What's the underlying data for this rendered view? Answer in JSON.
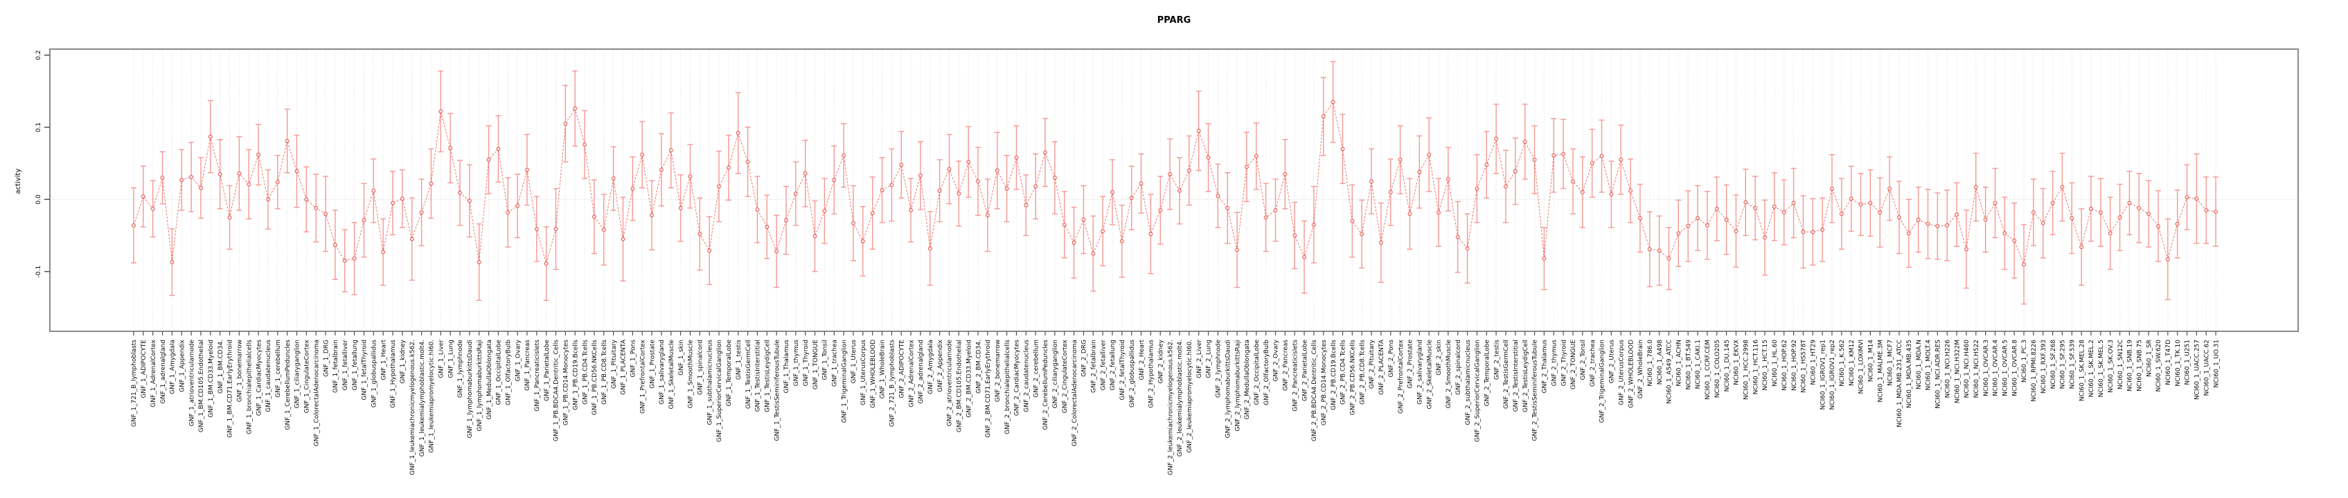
{
  "title": "PPARG",
  "chart_data": {
    "type": "line",
    "title": "PPARG",
    "ylabel": "activity",
    "xlabel": "",
    "ylim": [
      -0.185,
      0.21
    ],
    "yticks": [
      -0.1,
      0.0,
      0.1,
      0.2
    ],
    "ytick_labels": [
      "-0.1",
      "0.0",
      "0.1",
      "0.2"
    ],
    "grid": "vertical dotted gridline per category; dotted horizontal line at 0",
    "legend_position": "none",
    "point_color": "#e4564e",
    "line_color": "#e4564e",
    "errorbar_color": "#f59791",
    "box_color": "#8a8a8a",
    "gridline_color": "#dcdcdc",
    "categories": [
      "GNF_1_721_B_lymphoblasts",
      "GNF_1_ADIPOCYTE",
      "GNF_1_AdrenalCortex",
      "GNF_1_adrenalgland",
      "GNF_1_Amygdala",
      "GNF_1_Appendix",
      "GNF_1_atrioventricularnode",
      "GNF_1_BM.CD105.Endothelial",
      "GNF_1_BM.CD33.Myeloid",
      "GNF_1_BM.CD34.",
      "GNF_1_BM.CD71.EarlyErythroid",
      "GNF_1_bonemarrow",
      "GNF_1_bronchialepithelialcells",
      "GNF_1_CardiacMyocytes",
      "GNF_1_caudatenucleus",
      "GNF_1_cerebellum",
      "GNF_1_CerebellumPeduncles",
      "GNF_1_ciliaryganglion",
      "GNF_1_CingulateCortex",
      "GNF_1_ColorectalAdenocarcinoma",
      "GNF_1_DRG",
      "GNF_1_fetalbrain",
      "GNF_1_fetalliver",
      "GNF_1_fetallung",
      "GNF_1_fetalThyroid",
      "GNF_1_globuspallidus",
      "GNF_1_Heart",
      "GNF_1_Hypothalamus",
      "GNF_1_kidney",
      "GNF_1_leukemiachronicmyelogenous.k562.",
      "GNF_1_leukemialymphoblastic.molt4.",
      "GNF_1_leukemiapromyelocytic.hl60.",
      "GNF_1_Liver",
      "GNF_1_Lung",
      "GNF_1_lymphnode",
      "GNF_1_lymphomaburkittsDaudi",
      "GNF_1_lymphomaburkittsRaji",
      "GNF_1_MedullaOblongata",
      "GNF_1_OccipitalLobe",
      "GNF_1_OlfactoryBulb",
      "GNF_1_Ovary",
      "GNF_1_Pancreas",
      "GNF_1_Pancreaticislets",
      "GNF_1_ParietalLobe",
      "GNF_1_PB.BDCA4.Dentritic_Cells",
      "GNF_1_PB.CD14.Monocytes",
      "GNF_1_PB.CD19.Bcells",
      "GNF_1_PB.CD4.Tcells",
      "GNF_1_PB.CD56.NKCells",
      "GNF_1_PB.CD8.Tcells",
      "GNF_1_Pituitary",
      "GNF_1_PLACENTA",
      "GNF_1_Pons",
      "GNF_1_PrefrontalCortex",
      "GNF_1_Prostate",
      "GNF_1_salivarygland",
      "GNF_1_SkeletalMuscle",
      "GNF_1_skin",
      "GNF_1_SmoothMuscle",
      "GNF_1_spinalcord",
      "GNF_1_subthalamicnucleus",
      "GNF_1_SuperiorCervicalGanglion",
      "GNF_1_TemporalLobe",
      "GNF_1_testis",
      "GNF_1_TestisGermCell",
      "GNF_1_TestisInterstitial",
      "GNF_1_TestisLeydigCell",
      "GNF_1_TestisSeminiferousTubule",
      "GNF_1_Thalamus",
      "GNF_1_thymus",
      "GNF_1_Thyroid",
      "GNF_1_TONGUE",
      "GNF_1_Tonsil",
      "GNF_1_trachea",
      "GNF_1_TrigeminalGanglion",
      "GNF_1_Uterus",
      "GNF_1_UterusCorpus",
      "GNF_1_WHOLEBLOOD",
      "GNF_1_WholeBrain",
      "GNF_2_721_B_lymphoblasts",
      "GNF_2_ADIPOCYTE",
      "GNF_2_AdrenalCortex",
      "GNF_2_adrenalgland",
      "GNF_2_Amygdala",
      "GNF_2_Appendix",
      "GNF_2_atrioventricularnode",
      "GNF_2_BM.CD105.Endothelial",
      "GNF_2_BM.CD33.Myeloid",
      "GNF_2_BM.CD34.",
      "GNF_2_BM.CD71.EarlyErythroid",
      "GNF_2_bonemarrow",
      "GNF_2_bronchialepithelialcells",
      "GNF_2_CardiacMyocytes",
      "GNF_2_caudatenucleus",
      "GNF_2_cerebellum",
      "GNF_2_CerebellumPeduncles",
      "GNF_2_ciliaryganglion",
      "GNF_2_CingulateCortex",
      "GNF_2_ColorectalAdenocarcinoma",
      "GNF_2_DRG",
      "GNF_2_fetalbrain",
      "GNF_2_fetalliver",
      "GNF_2_fetallung",
      "GNF_2_fetalThyroid",
      "GNF_2_globuspallidus",
      "GNF_2_Heart",
      "GNF_2_Hypothalamus",
      "GNF_2_kidney",
      "GNF_2_leukemiachronicmyelogenous.k562.",
      "GNF_2_leukemialymphoblastic.molt4.",
      "GNF_2_leukemiapromyelocytic.hl60.",
      "GNF_2_Liver",
      "GNF_2_Lung",
      "GNF_2_lymphnode",
      "GNF_2_lymphomaburkittsDaudi",
      "GNF_2_lymphomaburkittsRaji",
      "GNF_2_MedullaOblongata",
      "GNF_2_OccipitalLobe",
      "GNF_2_OlfactoryBulb",
      "GNF_2_Ovary",
      "GNF_2_Pancreas",
      "GNF_2_Pancreaticislets",
      "GNF_2_ParietalLobe",
      "GNF_2_PB.BDCA4.Dentritic_Cells",
      "GNF_2_PB.CD14.Monocytes",
      "GNF_2_PB.CD19.Bcells",
      "GNF_2_PB.CD4.Tcells",
      "GNF_2_PB.CD56.NKCells",
      "GNF_2_PB.CD8.Tcells",
      "GNF_2_Pituitary",
      "GNF_2_PLACENTA",
      "GNF_2_Pons",
      "GNF_2_PrefrontalCortex",
      "GNF_2_Prostate",
      "GNF_2_salivarygland",
      "GNF_2_SkeletalMuscle",
      "GNF_2_skin",
      "GNF_2_SmoothMuscle",
      "GNF_2_spinalcord",
      "GNF_2_subthalamicnucleus",
      "GNF_2_SuperiorCervicalGanglion",
      "GNF_2_TemporalLobe",
      "GNF_2_testis",
      "GNF_2_TestisGermCell",
      "GNF_2_TestisInterstitial",
      "GNF_2_TestisLeydigCell",
      "GNF_2_TestisSeminiferousTubule",
      "GNF_2_Thalamus",
      "GNF_2_thymus",
      "GNF_2_Thyroid",
      "GNF_2_TONGUE",
      "GNF_2_Tonsil",
      "GNF_2_trachea",
      "GNF_2_TrigeminalGanglion",
      "GNF_2_Uterus",
      "GNF_2_UterusCorpus",
      "GNF_2_WHOLEBLOOD",
      "GNF_2_WholeBrain",
      "NCI60_1_786.0",
      "NCI60_1_A498",
      "NCI60_1_A549_ATCC",
      "NCI60_1_ACHN",
      "NCI60_1_BT.549",
      "NCI60_1_CAKI.1",
      "NCI60_1_CCRF.CEM",
      "NCI60_1_COLO205",
      "NCI60_1_DU.145",
      "NCI60_1_EKVX",
      "NCI60_1_HCC.2998",
      "NCI60_1_HCT.116",
      "NCI60_1_HCT.15",
      "NCI60_1_HL.60",
      "NCI60_1_HOP.62",
      "NCI60_1_HOP.92",
      "NCI60_1_HS578T",
      "NCI60_1_HT29",
      "NCI60_1_IGROV1_rep1",
      "NCI60_1_IGROV1_rep2",
      "NCI60_1_K.562",
      "NCI60_1_KM12",
      "NCI60_1_LOXIMVI",
      "NCI60_1_M14",
      "NCI60_1_MALME.3M",
      "NCI60_1_MCF7",
      "NCI60_1_MDA.MB.231_ATCC",
      "NCI60_1_MDA.MB.435",
      "NCI60_1_MDA.N",
      "NCI60_1_MOLT.4",
      "NCI60_1_NCI.ADR.RES",
      "NCI60_1_NCI.H226",
      "NCI60_1_NCI.H322M",
      "NCI60_1_NCI.H460",
      "NCI60_1_NCI.H522",
      "NCI60_1_OVCAR.3",
      "NCI60_1_OVCAR.4",
      "NCI60_1_OVCAR.5",
      "NCI60_1_OVCAR.8",
      "NCI60_1_PC.3",
      "NCI60_1_RPMI.8226",
      "NCI60_1_RXF.393",
      "NCI60_1_SF.268",
      "NCI60_1_SF.295",
      "NCI60_1_SF.539",
      "NCI60_1_SK.MEL.28",
      "NCI60_1_SK.MEL.2",
      "NCI60_1_SK.MEL.5",
      "NCI60_1_SK.OV.3",
      "NCI60_1_SN12C",
      "NCI60_1_SNB.19",
      "NCI60_1_SNB.75",
      "NCI60_1_SR",
      "NCI60_1_SW.620",
      "NCI60_1_T47D",
      "NCI60_1_TK.10",
      "NCI60_1_U251",
      "NCI60_1_UACC.257",
      "NCI60_1_UACC.62",
      "NCI60_1_UO.31"
    ],
    "series": [
      {
        "name": "activity",
        "values": [
          -0.036,
          0.004,
          -0.013,
          0.03,
          -0.087,
          0.027,
          0.031,
          0.016,
          0.087,
          0.035,
          -0.025,
          0.036,
          0.021,
          0.062,
          0.0,
          0.024,
          0.081,
          0.039,
          0.0,
          -0.012,
          -0.02,
          -0.063,
          -0.085,
          -0.082,
          -0.029,
          0.012,
          -0.073,
          -0.005,
          0.001,
          -0.055,
          -0.018,
          0.022,
          0.122,
          0.071,
          0.009,
          -0.002,
          -0.087,
          0.055,
          0.07,
          -0.018,
          -0.009,
          0.041,
          -0.041,
          -0.089,
          -0.041,
          0.105,
          0.126,
          0.076,
          -0.024,
          -0.042,
          0.029,
          -0.055,
          0.015,
          0.062,
          -0.022,
          0.041,
          0.068,
          -0.012,
          0.032,
          -0.048,
          -0.071,
          0.018,
          0.044,
          0.092,
          0.052,
          -0.014,
          -0.038,
          -0.072,
          -0.029,
          0.008,
          0.036,
          -0.051,
          -0.016,
          0.027,
          0.061,
          -0.033,
          -0.058,
          -0.019,
          0.013,
          0.02,
          0.048,
          -0.015,
          0.033,
          -0.068,
          0.012,
          0.042,
          0.008,
          0.052,
          0.025,
          -0.022,
          0.04,
          0.015,
          0.058,
          -0.008,
          0.018,
          0.065,
          0.03,
          -0.035,
          -0.06,
          -0.028,
          -0.075,
          -0.044,
          0.01,
          -0.058,
          0.002,
          0.022,
          -0.048,
          -0.015,
          0.035,
          0.012,
          0.04,
          0.095,
          0.058,
          0.005,
          -0.012,
          -0.07,
          0.045,
          0.06,
          -0.025,
          -0.015,
          0.035,
          -0.05,
          -0.08,
          -0.035,
          0.115,
          0.135,
          0.07,
          -0.03,
          -0.048,
          0.025,
          -0.06,
          0.01,
          0.055,
          -0.02,
          0.038,
          0.062,
          -0.018,
          0.028,
          -0.052,
          -0.068,
          0.015,
          0.048,
          0.084,
          0.018,
          0.039,
          0.08,
          0.055,
          -0.082,
          0.061,
          0.063,
          0.025,
          0.01,
          0.05,
          0.06,
          0.007,
          0.055,
          0.012,
          -0.026,
          -0.069,
          -0.071,
          -0.082,
          -0.047,
          -0.037,
          -0.026,
          -0.036,
          -0.013,
          -0.028,
          -0.044,
          -0.004,
          -0.012,
          -0.053,
          -0.01,
          -0.018,
          -0.005,
          -0.045,
          -0.045,
          -0.042,
          0.015,
          -0.02,
          0.001,
          -0.007,
          -0.005,
          -0.018,
          0.015,
          -0.025,
          -0.047,
          -0.028,
          -0.034,
          -0.037,
          -0.036,
          -0.021,
          -0.069,
          0.017,
          -0.028,
          -0.005,
          -0.047,
          -0.057,
          -0.09,
          -0.018,
          -0.033,
          -0.005,
          0.017,
          -0.026,
          -0.066,
          -0.013,
          -0.018,
          -0.047,
          -0.025,
          -0.005,
          -0.012,
          -0.02,
          -0.037,
          -0.083,
          -0.034,
          0.003,
          0.001,
          -0.015,
          -0.017
        ],
        "err": [
          0.052,
          0.042,
          0.039,
          0.036,
          0.046,
          0.042,
          0.048,
          0.042,
          0.05,
          0.048,
          0.044,
          0.051,
          0.048,
          0.042,
          0.041,
          0.037,
          0.044,
          0.05,
          0.045,
          0.047,
          0.052,
          0.048,
          0.043,
          0.05,
          0.051,
          0.044,
          0.046,
          0.044,
          0.04,
          0.057,
          0.046,
          0.048,
          0.056,
          0.048,
          0.045,
          0.05,
          0.053,
          0.047,
          0.046,
          0.048,
          0.044,
          0.049,
          0.045,
          0.051,
          0.056,
          0.053,
          0.052,
          0.047,
          0.051,
          0.049,
          0.044,
          0.058,
          0.044,
          0.046,
          0.048,
          0.05,
          0.052,
          0.046,
          0.044,
          0.05,
          0.047,
          0.049,
          0.045,
          0.056,
          0.048,
          0.046,
          0.044,
          0.05,
          0.047,
          0.044,
          0.046,
          0.049,
          0.045,
          0.047,
          0.044,
          0.052,
          0.048,
          0.05,
          0.045,
          0.05,
          0.046,
          0.044,
          0.047,
          0.051,
          0.043,
          0.048,
          0.045,
          0.049,
          0.047,
          0.05,
          0.053,
          0.046,
          0.044,
          0.042,
          0.045,
          0.047,
          0.05,
          0.046,
          0.049,
          0.047,
          0.052,
          0.048,
          0.045,
          0.05,
          0.044,
          0.041,
          0.055,
          0.047,
          0.049,
          0.046,
          0.048,
          0.055,
          0.047,
          0.044,
          0.049,
          0.052,
          0.048,
          0.046,
          0.047,
          0.043,
          0.048,
          0.046,
          0.05,
          0.053,
          0.054,
          0.056,
          0.048,
          0.05,
          0.047,
          0.045,
          0.055,
          0.046,
          0.047,
          0.049,
          0.05,
          0.051,
          0.047,
          0.044,
          0.049,
          0.048,
          0.047,
          0.046,
          0.048,
          0.05,
          0.046,
          0.052,
          0.047,
          0.043,
          0.051,
          0.048,
          0.045,
          0.049,
          0.047,
          0.05,
          0.046,
          0.048,
          0.044,
          0.047,
          0.052,
          0.048,
          0.043,
          0.046,
          0.049,
          0.045,
          0.047,
          0.044,
          0.048,
          0.05,
          0.046,
          0.044,
          0.052,
          0.047,
          0.045,
          0.048,
          0.05,
          0.046,
          0.044,
          0.047,
          0.049,
          0.045,
          0.043,
          0.046,
          0.048,
          0.044,
          0.05,
          0.047,
          0.045,
          0.048,
          0.046,
          0.049,
          0.044,
          0.054,
          0.047,
          0.045,
          0.048,
          0.05,
          0.052,
          0.055,
          0.046,
          0.048,
          0.044,
          0.047,
          0.049,
          0.053,
          0.045,
          0.047,
          0.05,
          0.046,
          0.044,
          0.048,
          0.046,
          0.049,
          0.056,
          0.047,
          0.045,
          0.062,
          0.046,
          0.048
        ]
      }
    ]
  }
}
